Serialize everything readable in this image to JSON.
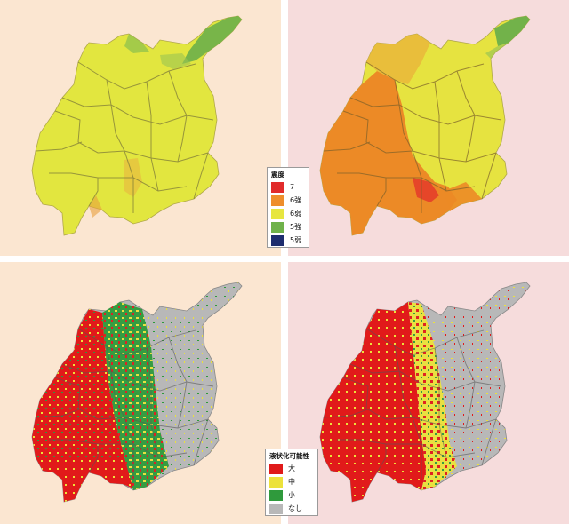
{
  "legend_seismic": {
    "title": "震度",
    "items": [
      {
        "label": "7",
        "color": "#e12b2b"
      },
      {
        "label": "6強",
        "color": "#ee8e2c"
      },
      {
        "label": "6弱",
        "color": "#e7e640"
      },
      {
        "label": "5強",
        "color": "#6fb24a"
      },
      {
        "label": "5弱",
        "color": "#1d2d6e"
      }
    ]
  },
  "legend_liquefaction": {
    "title": "液状化可能性",
    "items": [
      {
        "label": "大",
        "color": "#e01a1a"
      },
      {
        "label": "中",
        "color": "#ece23b"
      },
      {
        "label": "小",
        "color": "#2f9a3c"
      },
      {
        "label": "なし",
        "color": "#b8b8b8"
      }
    ]
  },
  "panel_backgrounds": {
    "left": "#fbe6d1",
    "right": "#f6dcdc"
  }
}
